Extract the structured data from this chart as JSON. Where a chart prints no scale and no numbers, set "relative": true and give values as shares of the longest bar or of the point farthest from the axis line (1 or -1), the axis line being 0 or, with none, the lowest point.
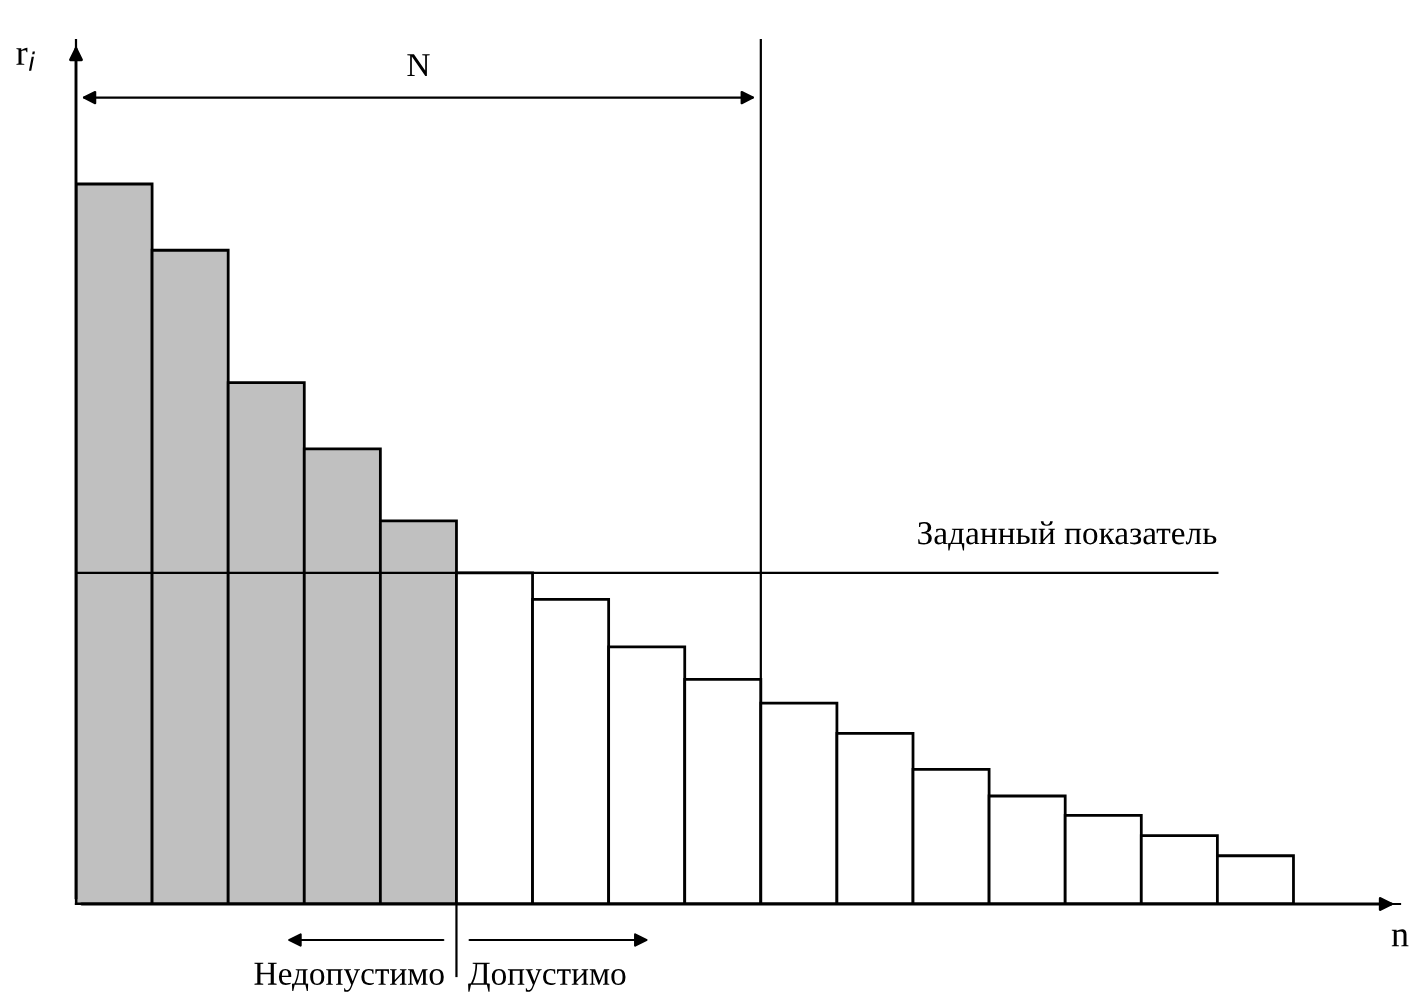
{
  "chart_data": {
    "type": "bar",
    "relative": true,
    "xlabel": "n",
    "ylabel": "r$_{i}$",
    "categories": [
      null,
      null,
      null,
      null,
      null,
      null,
      null,
      null,
      null,
      null,
      null,
      null,
      null,
      null,
      null,
      null
    ],
    "values": [
      1,
      0.908,
      0.724,
      0.632,
      0.532,
      0.46,
      0.423,
      0.357,
      0.312,
      0.279,
      0.237,
      0.187,
      0.15,
      0.123,
      0.095,
      0.067
    ],
    "colors": [
      "#c0c0c0",
      "#c0c0c0",
      "#c0c0c0",
      "#c0c0c0",
      "#c0c0c0",
      "#ffffff",
      "#ffffff",
      "#ffffff",
      "#ffffff",
      "#ffffff",
      "#ffffff",
      "#ffffff",
      "#ffffff",
      "#ffffff",
      "#ffffff",
      "#ffffff"
    ],
    "ref_lines": [
      {
        "axis": "y",
        "value": 0.46,
        "label": "Заданный показатель",
        "color": "#000000"
      }
    ],
    "annotations": [
      "N",
      "Недопустимо",
      "Допустимо"
    ],
    "grid": false,
    "legend": false
  }
}
